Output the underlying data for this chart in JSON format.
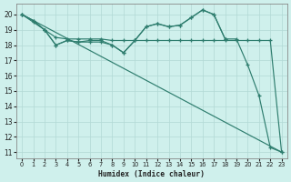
{
  "xlabel": "Humidex (Indice chaleur)",
  "bg_color": "#cff0ec",
  "grid_color": "#b2d8d4",
  "line_color": "#2e7d6e",
  "xlim": [
    -0.5,
    23.5
  ],
  "ylim": [
    10.6,
    20.7
  ],
  "yticks": [
    11,
    12,
    13,
    14,
    15,
    16,
    17,
    18,
    19,
    20
  ],
  "xticks": [
    0,
    1,
    2,
    3,
    4,
    5,
    6,
    7,
    8,
    9,
    10,
    11,
    12,
    13,
    14,
    15,
    16,
    17,
    18,
    19,
    20,
    21,
    22,
    23
  ],
  "line1_x": [
    0,
    1,
    2,
    3,
    4,
    5,
    6,
    7,
    8,
    9,
    10,
    11,
    12,
    13,
    14,
    15,
    16,
    17,
    18,
    19,
    20,
    21,
    22,
    23
  ],
  "line1_y": [
    20.0,
    19.6,
    19.0,
    18.0,
    18.3,
    18.2,
    18.3,
    18.3,
    18.0,
    17.5,
    18.3,
    19.2,
    19.4,
    19.2,
    19.3,
    19.8,
    20.3,
    20.0,
    18.4,
    18.4,
    16.7,
    14.7,
    11.3,
    11.0
  ],
  "line2_x": [
    0,
    23
  ],
  "line2_y": [
    20.0,
    11.0
  ],
  "line3_x": [
    0,
    1,
    2,
    3,
    4,
    5,
    6,
    7,
    8,
    9,
    10,
    11,
    12,
    13,
    14,
    15,
    16,
    17,
    18,
    19,
    20,
    21,
    22,
    23
  ],
  "line3_y": [
    20.0,
    19.6,
    19.0,
    18.5,
    18.4,
    18.4,
    18.4,
    18.4,
    18.3,
    18.3,
    18.3,
    18.3,
    18.3,
    18.3,
    18.3,
    18.3,
    18.3,
    18.3,
    18.3,
    18.3,
    18.3,
    18.3,
    18.3,
    11.0
  ],
  "line4_x": [
    0,
    1,
    2,
    3,
    4,
    5,
    6,
    7,
    8,
    9,
    10,
    11,
    12,
    13,
    14,
    15,
    16,
    17,
    18
  ],
  "line4_y": [
    20.0,
    19.5,
    19.0,
    18.0,
    18.3,
    18.2,
    18.2,
    18.2,
    18.0,
    17.5,
    18.3,
    19.2,
    19.4,
    19.2,
    19.3,
    19.8,
    20.3,
    20.0,
    18.4
  ]
}
